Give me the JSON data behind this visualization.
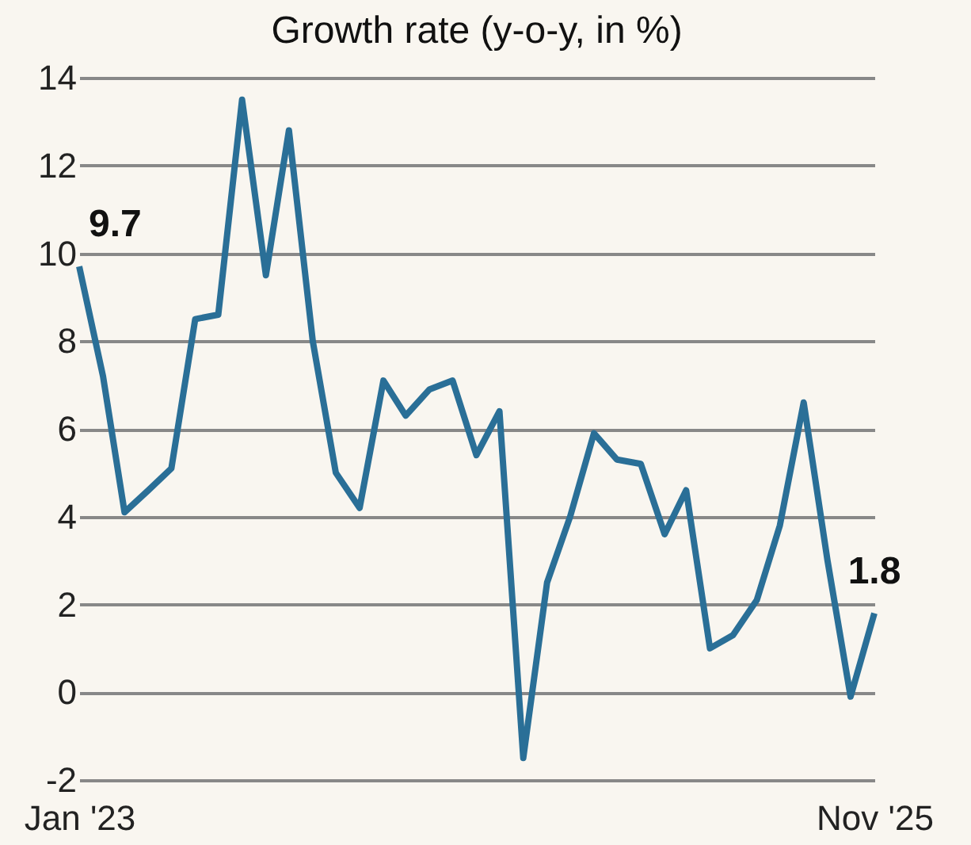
{
  "chart_data": {
    "type": "line",
    "title": "Growth rate (y-o-y, in %)",
    "x": [
      "2023-01",
      "2023-02",
      "2023-03",
      "2023-04",
      "2023-05",
      "2023-06",
      "2023-07",
      "2023-08",
      "2023-09",
      "2023-10",
      "2023-11",
      "2023-12",
      "2024-01",
      "2024-02",
      "2024-03",
      "2024-04",
      "2024-05",
      "2024-06",
      "2024-07",
      "2024-08",
      "2024-09",
      "2024-10",
      "2024-11",
      "2024-12",
      "2025-01",
      "2025-02",
      "2025-03",
      "2025-04",
      "2025-05",
      "2025-06",
      "2025-07",
      "2025-08",
      "2025-09",
      "2025-10",
      "2025-11"
    ],
    "series": [
      {
        "color": "#2a6f97",
        "values": [
          9.7,
          7.2,
          4.1,
          4.6,
          5.1,
          8.5,
          8.6,
          13.5,
          9.5,
          12.8,
          8.0,
          5.0,
          4.2,
          7.1,
          6.3,
          6.9,
          7.1,
          5.4,
          6.4,
          -1.5,
          2.5,
          4.0,
          5.9,
          5.3,
          5.2,
          3.6,
          4.6,
          1.0,
          1.3,
          2.1,
          3.8,
          6.6,
          3.0,
          -0.1,
          1.8
        ]
      }
    ],
    "xlim": [
      "2023-01",
      "2025-11"
    ],
    "xticks": [
      {
        "value": "2023-01",
        "label": "Jan '23"
      },
      {
        "value": "2025-11",
        "label": "Nov '25"
      }
    ],
    "ylim": [
      -2,
      14
    ],
    "yticks": [
      -2,
      0,
      2,
      4,
      6,
      8,
      10,
      12,
      14
    ],
    "grid": "y",
    "annotations": [
      {
        "text": "9.7",
        "x": "2023-01",
        "y": 9.7
      },
      {
        "text": "1.8",
        "x": "2025-11",
        "y": 1.8
      }
    ]
  }
}
